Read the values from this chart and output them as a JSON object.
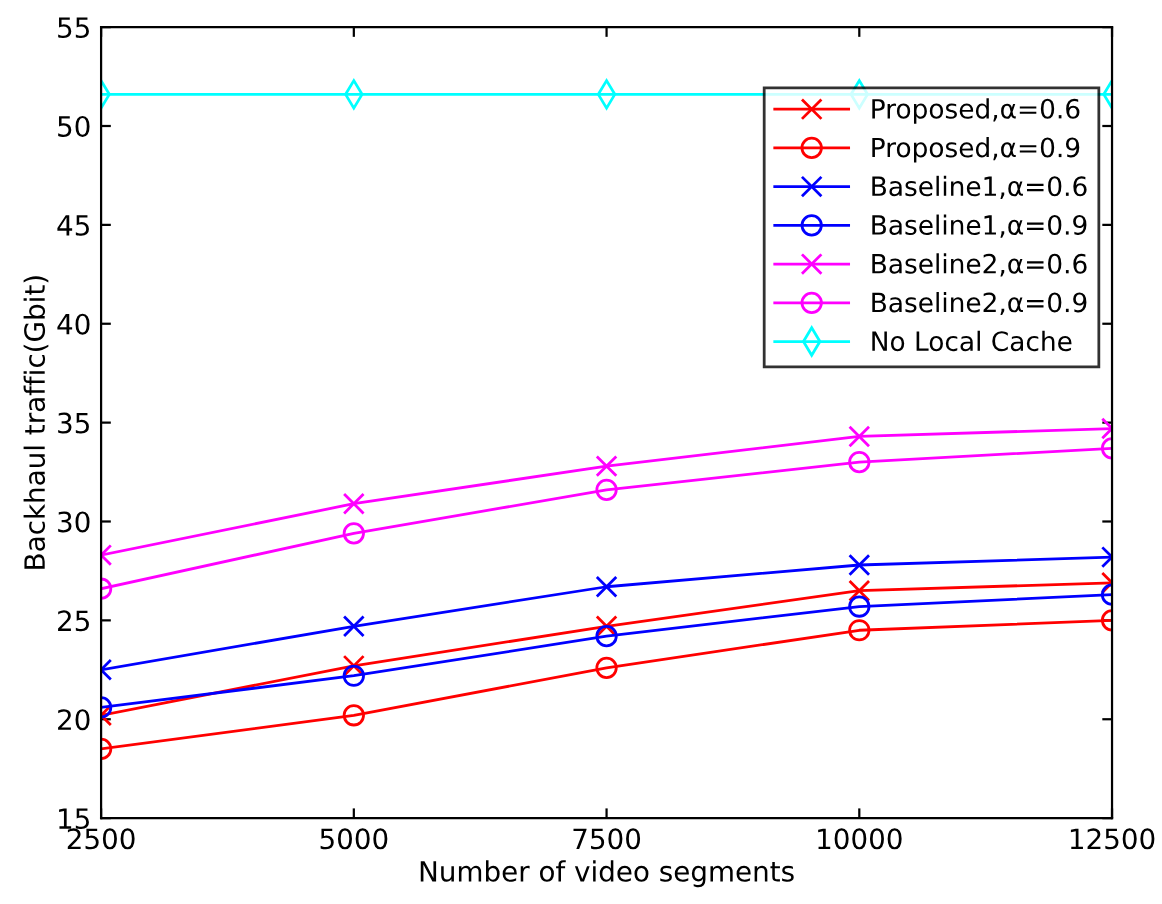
{
  "chart_data": {
    "type": "line",
    "xlabel": "Number of video segments",
    "ylabel": "Backhaul traffic(Gbit)",
    "x": [
      2500,
      5000,
      7500,
      10000,
      12500
    ],
    "xlim": [
      2500,
      12500
    ],
    "xticks": [
      2500,
      5000,
      7500,
      10000,
      12500
    ],
    "ylim": [
      15,
      55
    ],
    "yticks": [
      15,
      20,
      25,
      30,
      35,
      40,
      45,
      50,
      55
    ],
    "grid": false,
    "legend": "top right",
    "line_style": "solid",
    "series": [
      {
        "name": "Proposed,α=0.6",
        "color": "#ff0000",
        "marker": "cross",
        "values": [
          20.2,
          22.7,
          24.7,
          26.5,
          26.9
        ]
      },
      {
        "name": "Proposed,α=0.9",
        "color": "#ff0000",
        "marker": "circle",
        "values": [
          18.5,
          20.2,
          22.6,
          24.5,
          25.0
        ]
      },
      {
        "name": "Baseline1,α=0.6",
        "color": "#0000ff",
        "marker": "cross",
        "values": [
          22.5,
          24.7,
          26.7,
          27.8,
          28.2
        ]
      },
      {
        "name": "Baseline1,α=0.9",
        "color": "#0000ff",
        "marker": "circle",
        "values": [
          20.6,
          22.2,
          24.2,
          25.7,
          26.3
        ]
      },
      {
        "name": "Baseline2,α=0.6",
        "color": "#ff00ff",
        "marker": "cross",
        "values": [
          28.3,
          30.9,
          32.8,
          34.3,
          34.7
        ]
      },
      {
        "name": "Baseline2,α=0.9",
        "color": "#ff00ff",
        "marker": "circle",
        "values": [
          26.6,
          29.4,
          31.6,
          33.0,
          33.7
        ]
      },
      {
        "name": "No Local Cache",
        "color": "#00ffff",
        "marker": "diamond",
        "values": [
          51.6,
          51.6,
          51.6,
          51.6,
          51.6
        ]
      }
    ]
  }
}
